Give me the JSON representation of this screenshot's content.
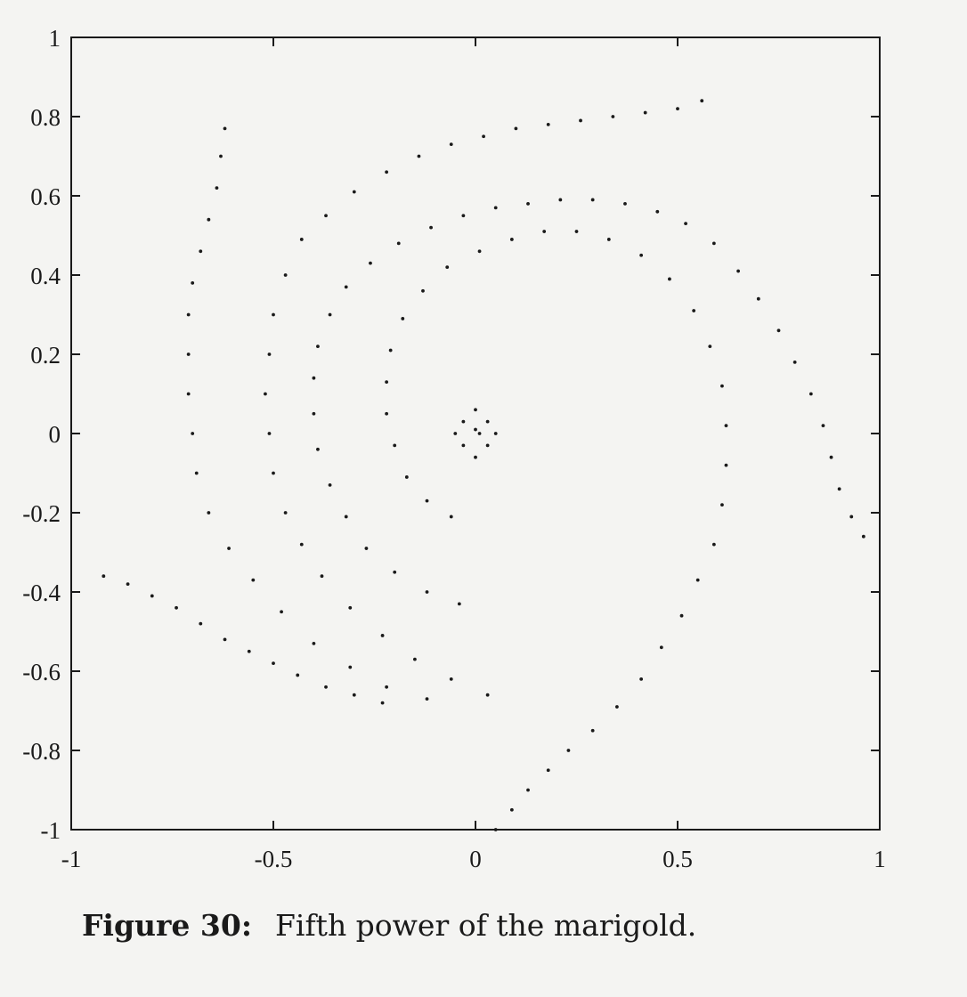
{
  "caption": {
    "label": "Figure 30:",
    "text": "Fifth power of the marigold."
  },
  "chart_data": {
    "type": "scatter",
    "title": "",
    "xlabel": "",
    "ylabel": "",
    "xlim": [
      -1,
      1
    ],
    "ylim": [
      -1,
      1
    ],
    "grid": false,
    "x_ticks": [
      -1,
      -0.5,
      0,
      0.5,
      1
    ],
    "y_ticks": [
      1,
      0.8,
      0.6,
      0.4,
      0.2,
      0,
      -0.2,
      -0.4,
      -0.6,
      -0.8,
      -1
    ],
    "x_tick_labels": [
      "-1",
      "-0.5",
      "0",
      "0.5",
      "1"
    ],
    "y_tick_labels": [
      "1",
      "0.8",
      "0.6",
      "0.4",
      "0.2",
      "0",
      "-0.2",
      "-0.4",
      "-0.6",
      "-0.8",
      "-1"
    ],
    "marker_color": "#1a1a1a",
    "series": [
      {
        "points": [
          [
            0.56,
            0.84
          ],
          [
            0.5,
            0.82
          ],
          [
            0.42,
            0.81
          ],
          [
            0.34,
            0.8
          ],
          [
            0.26,
            0.79
          ],
          [
            0.18,
            0.78
          ],
          [
            0.1,
            0.77
          ],
          [
            0.02,
            0.75
          ],
          [
            -0.06,
            0.73
          ],
          [
            -0.14,
            0.7
          ],
          [
            -0.22,
            0.66
          ],
          [
            -0.3,
            0.61
          ],
          [
            -0.37,
            0.55
          ],
          [
            -0.43,
            0.49
          ],
          [
            -0.47,
            0.4
          ],
          [
            -0.5,
            0.3
          ],
          [
            -0.51,
            0.2
          ],
          [
            -0.52,
            0.1
          ],
          [
            -0.51,
            0.0
          ],
          [
            -0.5,
            -0.1
          ],
          [
            -0.47,
            -0.2
          ],
          [
            -0.43,
            -0.28
          ],
          [
            -0.38,
            -0.36
          ],
          [
            -0.31,
            -0.44
          ],
          [
            -0.23,
            -0.51
          ],
          [
            -0.15,
            -0.57
          ],
          [
            -0.06,
            -0.62
          ],
          [
            0.03,
            -0.66
          ],
          [
            -0.62,
            0.77
          ],
          [
            -0.63,
            0.7
          ],
          [
            -0.64,
            0.62
          ],
          [
            -0.66,
            0.54
          ],
          [
            -0.68,
            0.46
          ],
          [
            -0.7,
            0.38
          ],
          [
            -0.71,
            0.3
          ],
          [
            -0.71,
            0.2
          ],
          [
            -0.71,
            0.1
          ],
          [
            -0.7,
            0.0
          ],
          [
            -0.69,
            -0.1
          ],
          [
            -0.66,
            -0.2
          ],
          [
            -0.61,
            -0.29
          ],
          [
            -0.55,
            -0.37
          ],
          [
            -0.48,
            -0.45
          ],
          [
            -0.4,
            -0.53
          ],
          [
            -0.31,
            -0.59
          ],
          [
            -0.22,
            -0.64
          ],
          [
            -0.12,
            -0.67
          ],
          [
            -0.92,
            -0.36
          ],
          [
            -0.86,
            -0.38
          ],
          [
            -0.8,
            -0.41
          ],
          [
            -0.74,
            -0.44
          ],
          [
            -0.68,
            -0.48
          ],
          [
            -0.62,
            -0.52
          ],
          [
            -0.56,
            -0.55
          ],
          [
            -0.5,
            -0.58
          ],
          [
            -0.44,
            -0.61
          ],
          [
            -0.37,
            -0.64
          ],
          [
            -0.3,
            -0.66
          ],
          [
            -0.23,
            -0.68
          ],
          [
            0.96,
            -0.26
          ],
          [
            0.93,
            -0.21
          ],
          [
            0.9,
            -0.14
          ],
          [
            0.88,
            -0.06
          ],
          [
            0.86,
            0.02
          ],
          [
            0.83,
            0.1
          ],
          [
            0.79,
            0.18
          ],
          [
            0.75,
            0.26
          ],
          [
            0.7,
            0.34
          ],
          [
            0.65,
            0.41
          ],
          [
            0.59,
            0.48
          ],
          [
            0.52,
            0.53
          ],
          [
            0.45,
            0.56
          ],
          [
            0.37,
            0.58
          ],
          [
            0.29,
            0.59
          ],
          [
            0.21,
            0.59
          ],
          [
            0.13,
            0.58
          ],
          [
            0.05,
            0.57
          ],
          [
            -0.03,
            0.55
          ],
          [
            -0.11,
            0.52
          ],
          [
            -0.19,
            0.48
          ],
          [
            -0.26,
            0.43
          ],
          [
            -0.32,
            0.37
          ],
          [
            -0.36,
            0.3
          ],
          [
            -0.39,
            0.22
          ],
          [
            -0.4,
            0.14
          ],
          [
            -0.4,
            0.05
          ],
          [
            -0.39,
            -0.04
          ],
          [
            -0.36,
            -0.13
          ],
          [
            -0.32,
            -0.21
          ],
          [
            -0.27,
            -0.29
          ],
          [
            -0.2,
            -0.35
          ],
          [
            -0.12,
            -0.4
          ],
          [
            -0.04,
            -0.43
          ],
          [
            0.05,
            -1.0
          ],
          [
            0.09,
            -0.95
          ],
          [
            0.13,
            -0.9
          ],
          [
            0.18,
            -0.85
          ],
          [
            0.23,
            -0.8
          ],
          [
            0.29,
            -0.75
          ],
          [
            0.35,
            -0.69
          ],
          [
            0.41,
            -0.62
          ],
          [
            0.46,
            -0.54
          ],
          [
            0.51,
            -0.46
          ],
          [
            0.55,
            -0.37
          ],
          [
            0.59,
            -0.28
          ],
          [
            0.61,
            -0.18
          ],
          [
            0.62,
            -0.08
          ],
          [
            0.62,
            0.02
          ],
          [
            0.61,
            0.12
          ],
          [
            0.58,
            0.22
          ],
          [
            0.54,
            0.31
          ],
          [
            0.48,
            0.39
          ],
          [
            0.41,
            0.45
          ],
          [
            0.33,
            0.49
          ],
          [
            0.25,
            0.51
          ],
          [
            0.17,
            0.51
          ],
          [
            0.09,
            0.49
          ],
          [
            0.01,
            0.46
          ],
          [
            -0.07,
            0.42
          ],
          [
            -0.13,
            0.36
          ],
          [
            -0.18,
            0.29
          ],
          [
            -0.21,
            0.21
          ],
          [
            -0.22,
            0.13
          ],
          [
            -0.22,
            0.05
          ],
          [
            -0.2,
            -0.03
          ],
          [
            -0.17,
            -0.11
          ],
          [
            -0.12,
            -0.17
          ],
          [
            -0.06,
            -0.21
          ],
          [
            0.0,
            -0.06
          ],
          [
            0.05,
            0.0
          ],
          [
            0.0,
            0.06
          ],
          [
            -0.05,
            0.0
          ],
          [
            0.03,
            -0.03
          ],
          [
            0.03,
            0.03
          ],
          [
            -0.03,
            0.03
          ],
          [
            -0.03,
            -0.03
          ],
          [
            0.01,
            0.0
          ],
          [
            0.0,
            0.01
          ]
        ]
      }
    ]
  }
}
